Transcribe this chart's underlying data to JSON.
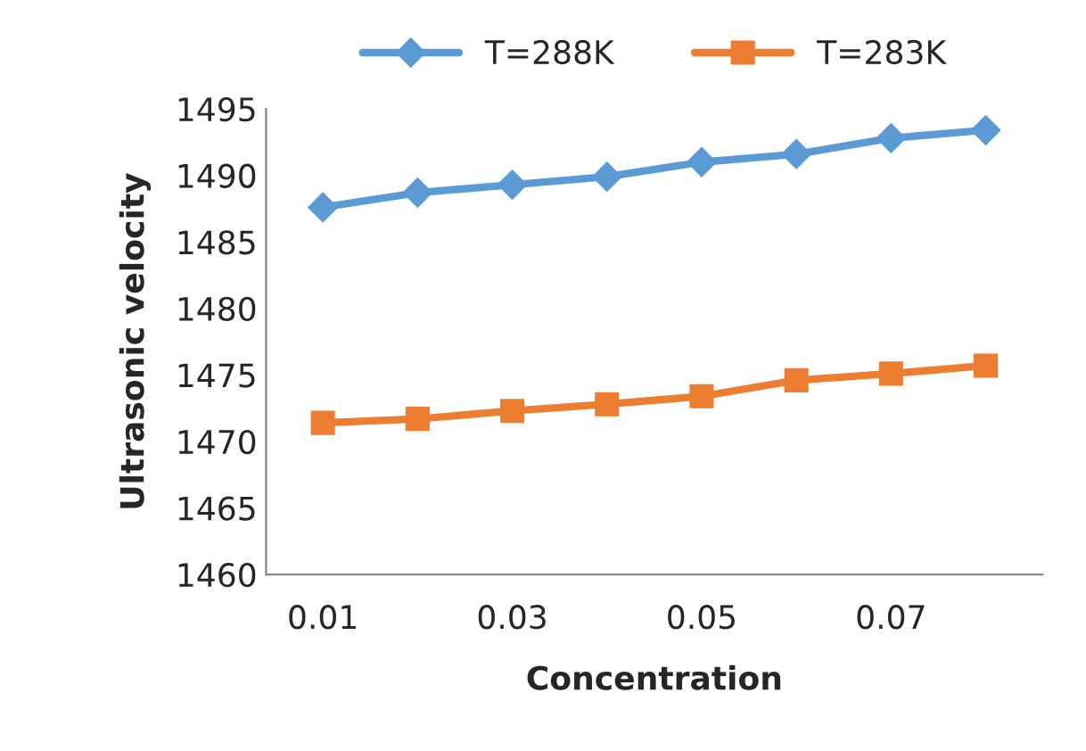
{
  "chart_data": {
    "type": "line",
    "xlabel": "Concentration",
    "ylabel": "Ultrasonic velocity",
    "categories": [
      "0.01",
      null,
      "0.03",
      null,
      "0.05",
      null,
      "0.07",
      null
    ],
    "series": [
      {
        "name": "T=288K",
        "color": "#5b9bd5",
        "marker": "diamond",
        "values": [
          1487.6,
          1488.7,
          1489.3,
          1489.9,
          1491.0,
          1491.6,
          1492.8,
          1493.4
        ]
      },
      {
        "name": "T=283K",
        "color": "#ed7d31",
        "marker": "square",
        "values": [
          1471.4,
          1471.7,
          1472.3,
          1472.8,
          1473.4,
          1474.6,
          1475.1,
          1475.7
        ]
      }
    ],
    "ylim": [
      1460,
      1495
    ],
    "yticks": [
      1460,
      1465,
      1470,
      1475,
      1480,
      1485,
      1490,
      1495
    ],
    "grid": false,
    "legend": "top",
    "line_style": "solid"
  }
}
